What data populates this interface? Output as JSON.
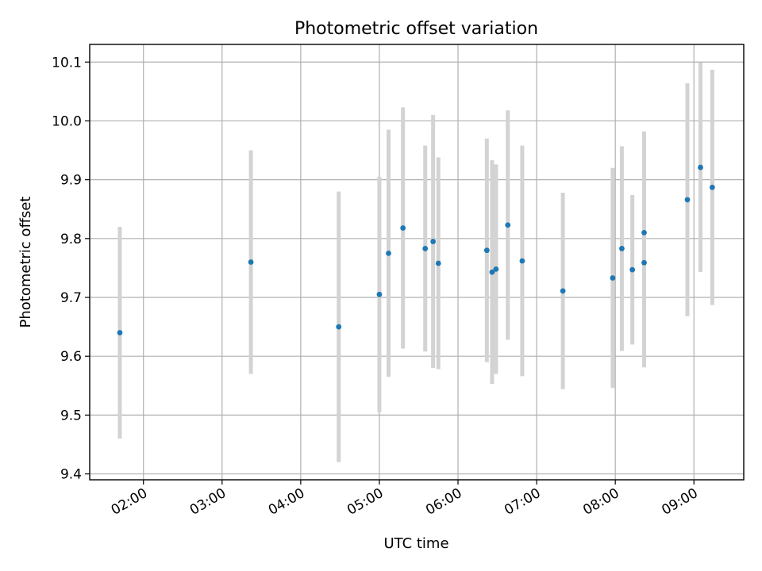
{
  "chart_data": {
    "type": "scatter",
    "title": "Photometric offset variation",
    "xlabel": "UTC time",
    "ylabel": "Photometric offset",
    "xlim": [
      "01:19",
      "09:38"
    ],
    "ylim": [
      9.39,
      10.13
    ],
    "x_ticks": [
      "02:00",
      "03:00",
      "04:00",
      "05:00",
      "06:00",
      "07:00",
      "08:00",
      "09:00"
    ],
    "y_ticks": [
      "9.4",
      "9.5",
      "9.6",
      "9.7",
      "9.8",
      "9.9",
      "10.0",
      "10.1"
    ],
    "grid": true,
    "colors": {
      "points": "#1f77b4",
      "error_bars": "#d3d3d3"
    },
    "series": [
      {
        "points": [
          {
            "x": "01:42",
            "y": 9.64,
            "err": 0.18
          },
          {
            "x": "03:22",
            "y": 9.76,
            "err": 0.19
          },
          {
            "x": "04:29",
            "y": 9.65,
            "err": 0.23
          },
          {
            "x": "05:00",
            "y": 9.705,
            "err": 0.2
          },
          {
            "x": "05:07",
            "y": 9.775,
            "err": 0.21
          },
          {
            "x": "05:18",
            "y": 9.818,
            "err": 0.205
          },
          {
            "x": "05:35",
            "y": 9.783,
            "err": 0.175
          },
          {
            "x": "05:41",
            "y": 9.795,
            "err": 0.215
          },
          {
            "x": "05:45",
            "y": 9.758,
            "err": 0.18
          },
          {
            "x": "06:22",
            "y": 9.78,
            "err": 0.19
          },
          {
            "x": "06:26",
            "y": 9.743,
            "err": 0.19
          },
          {
            "x": "06:29",
            "y": 9.748,
            "err": 0.178
          },
          {
            "x": "06:38",
            "y": 9.823,
            "err": 0.195
          },
          {
            "x": "06:49",
            "y": 9.762,
            "err": 0.196
          },
          {
            "x": "07:20",
            "y": 9.711,
            "err": 0.167
          },
          {
            "x": "07:58",
            "y": 9.733,
            "err": 0.187
          },
          {
            "x": "08:05",
            "y": 9.783,
            "err": 0.174
          },
          {
            "x": "08:13",
            "y": 9.747,
            "err": 0.127
          },
          {
            "x": "08:22",
            "y": 9.81,
            "err": 0.172
          },
          {
            "x": "08:22",
            "y": 9.759,
            "err": 0.178
          },
          {
            "x": "08:55",
            "y": 9.866,
            "err": 0.198
          },
          {
            "x": "09:05",
            "y": 9.921,
            "err": 0.178
          },
          {
            "x": "09:14",
            "y": 9.887,
            "err": 0.2
          }
        ]
      }
    ]
  }
}
